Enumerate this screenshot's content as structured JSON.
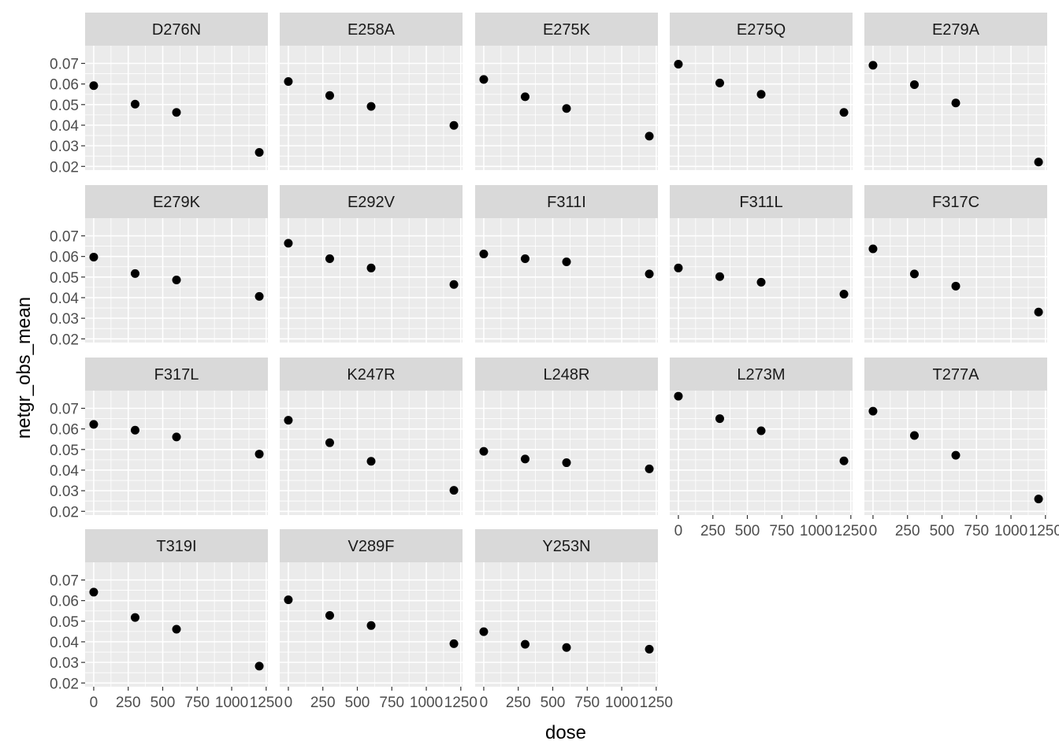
{
  "chart_data": {
    "type": "scatter",
    "facet": "wrap",
    "ncol": 5,
    "xlabel": "dose",
    "ylabel": "netgr_obs_mean",
    "x_ticks": [
      0,
      250,
      500,
      750,
      1000,
      1250
    ],
    "x_tick_labels": [
      "0",
      "250",
      "500",
      "750",
      "1000",
      "1250"
    ],
    "y_ticks": [
      0.02,
      0.03,
      0.04,
      0.05,
      0.06,
      0.07
    ],
    "y_tick_labels": [
      "0.02",
      "0.03",
      "0.04",
      "0.05",
      "0.06",
      "0.07"
    ],
    "xlim": [
      -62.5,
      1262.5
    ],
    "ylim": [
      0.0182,
      0.0786
    ],
    "grid": true,
    "theme": "ggplot2 grey",
    "colors": {
      "panel_bg": "#ebebeb",
      "grid": "#ffffff",
      "strip_bg": "#d9d9d9",
      "point": "#000000"
    },
    "doses": [
      0,
      300,
      600,
      1200
    ],
    "panels": [
      {
        "name": "D276N",
        "y": [
          0.0592,
          0.0502,
          0.0462,
          0.0268
        ]
      },
      {
        "name": "E258A",
        "y": [
          0.0612,
          0.0544,
          0.0491,
          0.0399
        ]
      },
      {
        "name": "E275K",
        "y": [
          0.0622,
          0.0538,
          0.0481,
          0.0347
        ]
      },
      {
        "name": "E275Q",
        "y": [
          0.0696,
          0.0605,
          0.055,
          0.0462
        ]
      },
      {
        "name": "E279A",
        "y": [
          0.0691,
          0.0597,
          0.0508,
          0.0221
        ]
      },
      {
        "name": "E279K",
        "y": [
          0.0597,
          0.0517,
          0.0486,
          0.0406
        ]
      },
      {
        "name": "E292V",
        "y": [
          0.0664,
          0.0589,
          0.0544,
          0.0464
        ]
      },
      {
        "name": "F311I",
        "y": [
          0.0612,
          0.0589,
          0.0574,
          0.0515
        ]
      },
      {
        "name": "F311L",
        "y": [
          0.0544,
          0.0502,
          0.0475,
          0.0417
        ]
      },
      {
        "name": "F317C",
        "y": [
          0.0637,
          0.0515,
          0.0456,
          0.033
        ]
      },
      {
        "name": "F317L",
        "y": [
          0.0622,
          0.0594,
          0.0561,
          0.0478
        ]
      },
      {
        "name": "K247R",
        "y": [
          0.0642,
          0.0533,
          0.0443,
          0.0302
        ]
      },
      {
        "name": "L248R",
        "y": [
          0.0491,
          0.0454,
          0.0436,
          0.0406
        ]
      },
      {
        "name": "L273M",
        "y": [
          0.0759,
          0.065,
          0.0591,
          0.0445
        ]
      },
      {
        "name": "T277A",
        "y": [
          0.0686,
          0.0568,
          0.0472,
          0.026
        ]
      },
      {
        "name": "T319I",
        "y": [
          0.0641,
          0.0518,
          0.0461,
          0.0282
        ]
      },
      {
        "name": "V289F",
        "y": [
          0.0604,
          0.0528,
          0.0479,
          0.0391
        ]
      },
      {
        "name": "Y253N",
        "y": [
          0.0449,
          0.0388,
          0.0372,
          0.0364
        ]
      }
    ]
  }
}
